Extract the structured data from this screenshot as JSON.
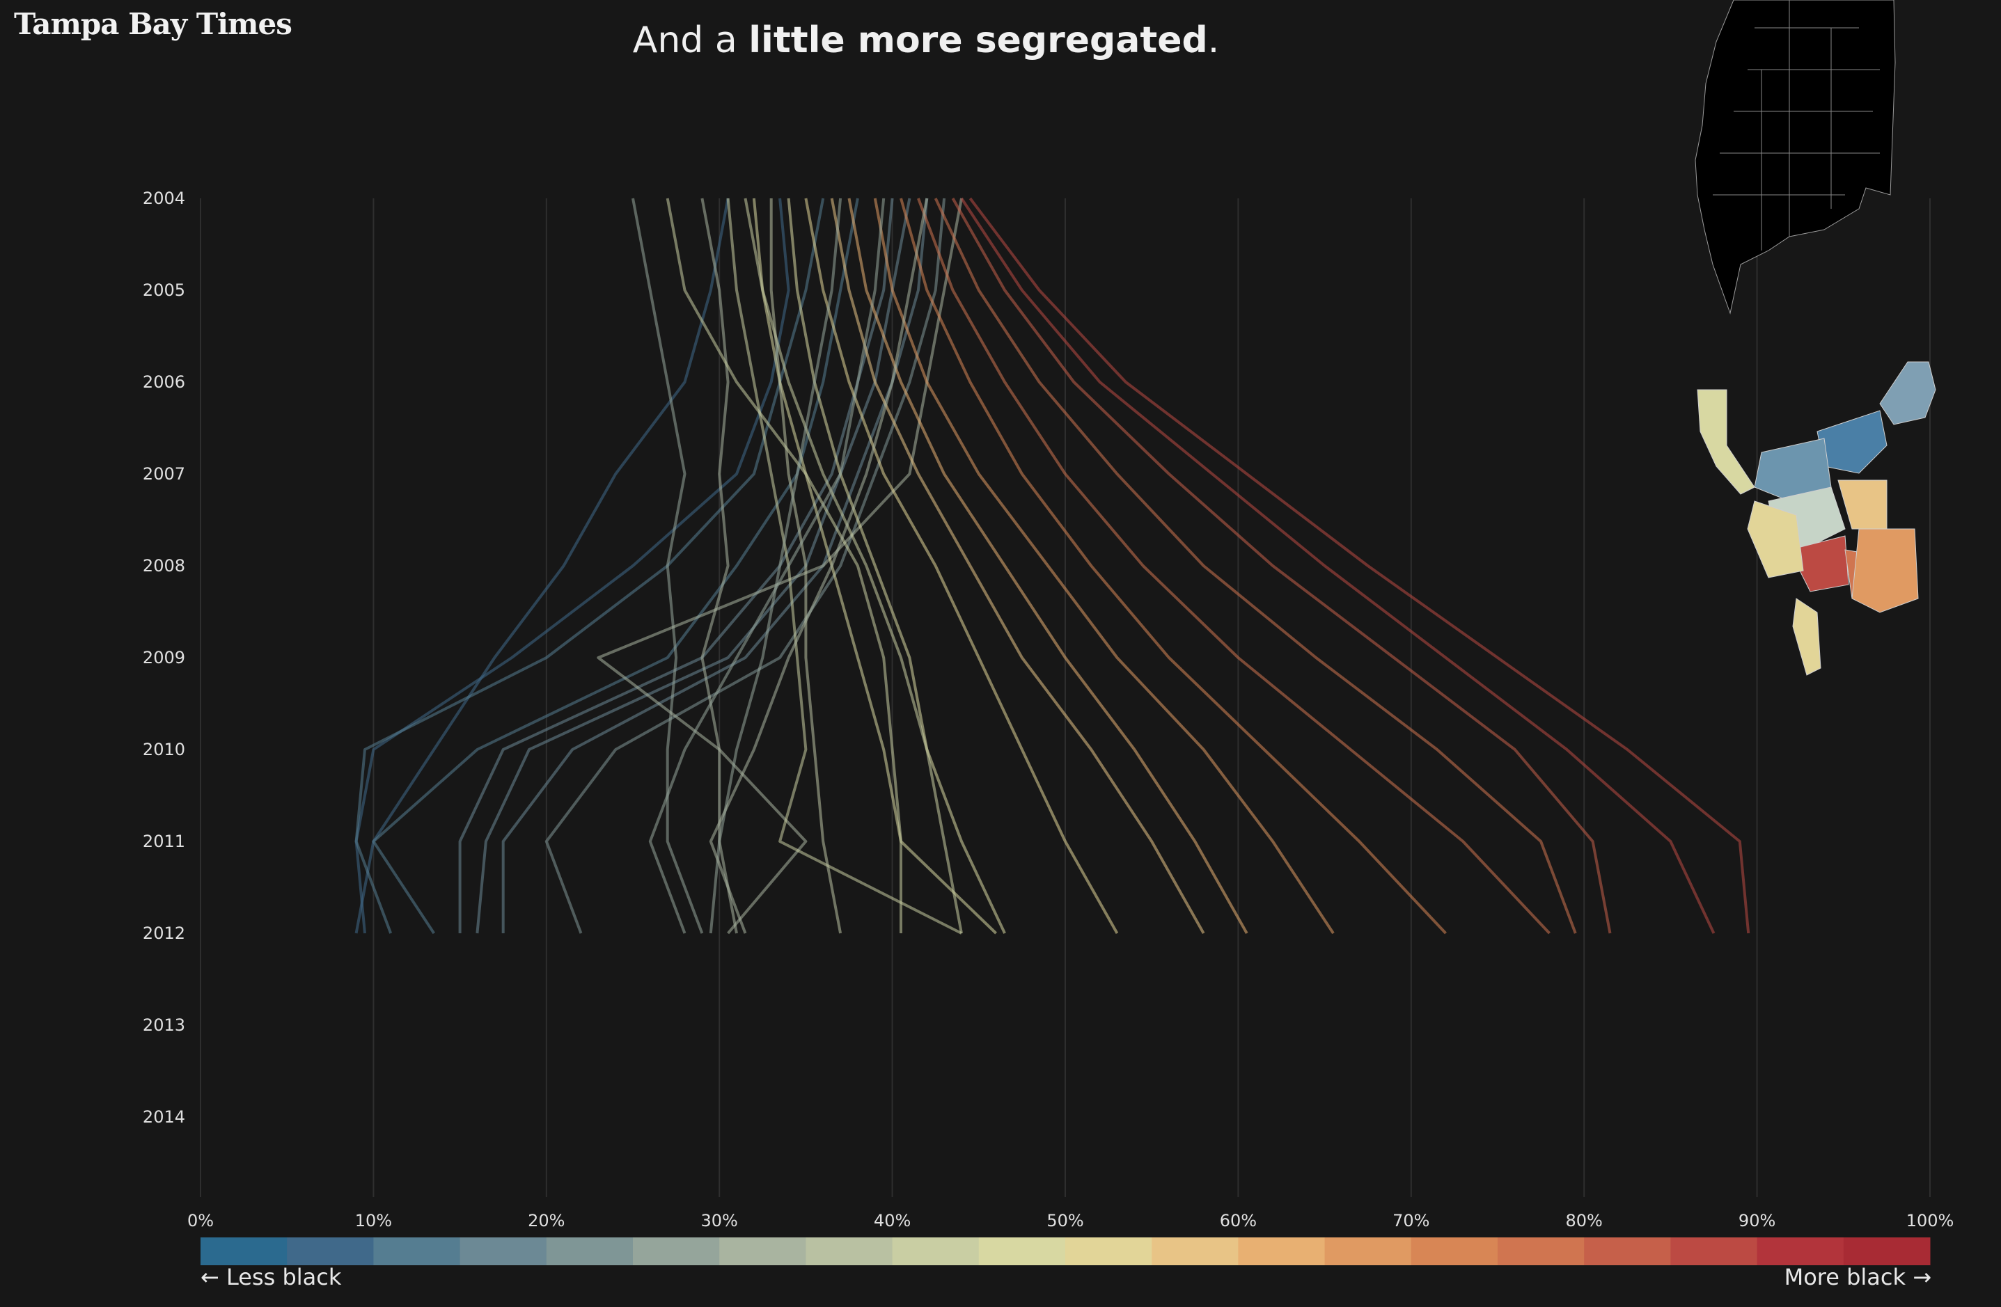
{
  "brand": {
    "logo_text": "Tampa Bay Times"
  },
  "headline": {
    "prefix": "And a ",
    "bold": "little more segregated",
    "suffix": "."
  },
  "legend": {
    "left_label": "← Less black",
    "right_label": "More black →"
  },
  "colors": {
    "background": "#171717",
    "gridline": "#2e2e2e",
    "scale": [
      "#2b6a8f",
      "#40698a",
      "#557d91",
      "#6c8995",
      "#7f9696",
      "#95a59b",
      "#a9b4a0",
      "#b9c1a2",
      "#c9cea3",
      "#d8d8a2",
      "#e2d598",
      "#e8c486",
      "#e8b072",
      "#e09a62",
      "#d88655",
      "#d07550",
      "#c6604a",
      "#bc4a43",
      "#b2343b",
      "#a82b34"
    ]
  },
  "chart_data": {
    "type": "line",
    "title": "And a little more segregated.",
    "xlabel": "",
    "ylabel": "",
    "xlim": [
      0,
      100
    ],
    "x_ticks": [
      "0%",
      "10%",
      "20%",
      "30%",
      "40%",
      "50%",
      "60%",
      "70%",
      "80%",
      "90%",
      "100%"
    ],
    "years": [
      "2004",
      "2005",
      "2006",
      "2007",
      "2008",
      "2009",
      "2010",
      "2011",
      "2012",
      "2013",
      "2014"
    ],
    "grid": true,
    "series": [
      {
        "values": [
          30.5,
          29.5,
          28.0,
          24.0,
          21.0,
          17.0,
          13.5,
          10.0,
          9.0
        ]
      },
      {
        "values": [
          33.5,
          34.0,
          33.0,
          31.0,
          25.0,
          18.0,
          10.0,
          9.0,
          9.5
        ]
      },
      {
        "values": [
          36.0,
          35.0,
          33.5,
          32.0,
          27.0,
          20.0,
          9.5,
          9.0,
          11.0
        ]
      },
      {
        "values": [
          38.0,
          37.0,
          36.0,
          34.5,
          31.0,
          27.0,
          16.0,
          10.0,
          13.5
        ]
      },
      {
        "values": [
          40.0,
          39.5,
          38.0,
          36.5,
          33.5,
          29.0,
          17.5,
          15.0,
          15.0
        ]
      },
      {
        "values": [
          41.0,
          40.0,
          39.0,
          37.0,
          35.0,
          30.5,
          19.0,
          16.5,
          16.0
        ]
      },
      {
        "values": [
          42.0,
          41.5,
          40.0,
          38.0,
          36.0,
          31.5,
          21.5,
          17.5,
          17.5
        ]
      },
      {
        "values": [
          43.0,
          42.5,
          41.0,
          39.0,
          37.0,
          33.5,
          24.0,
          20.0,
          22.0
        ]
      },
      {
        "values": [
          25.0,
          26.0,
          27.0,
          28.0,
          27.0,
          27.5,
          27.0,
          27.0,
          29.0
        ]
      },
      {
        "values": [
          29.0,
          30.0,
          30.5,
          30.0,
          30.5,
          29.0,
          30.0,
          30.0,
          31.0
        ]
      },
      {
        "values": [
          44.0,
          43.0,
          42.0,
          41.0,
          36.0,
          23.0,
          30.0,
          35.0,
          30.5
        ]
      },
      {
        "values": [
          30.5,
          31.0,
          32.0,
          33.0,
          34.0,
          34.5,
          35.0,
          33.5,
          44.0
        ]
      },
      {
        "values": [
          32.0,
          32.5,
          33.5,
          35.0,
          36.5,
          38.0,
          39.5,
          40.5,
          46.0
        ]
      },
      {
        "values": [
          34.0,
          34.5,
          35.5,
          37.0,
          39.0,
          41.0,
          42.0,
          44.0,
          46.5
        ]
      },
      {
        "values": [
          35.0,
          36.0,
          37.5,
          39.5,
          42.5,
          45.0,
          47.5,
          50.0,
          53.0
        ]
      },
      {
        "values": [
          36.5,
          37.5,
          39.0,
          41.5,
          44.5,
          47.5,
          51.5,
          55.0,
          58.0
        ]
      },
      {
        "values": [
          37.5,
          38.5,
          40.5,
          43.0,
          46.5,
          50.0,
          54.0,
          57.5,
          60.5
        ]
      },
      {
        "values": [
          39.0,
          40.0,
          42.0,
          45.0,
          49.0,
          53.0,
          58.0,
          62.0,
          65.5
        ]
      },
      {
        "values": [
          40.5,
          42.0,
          44.5,
          47.5,
          51.5,
          56.0,
          61.5,
          67.0,
          72.0
        ]
      },
      {
        "values": [
          41.5,
          43.5,
          46.5,
          50.0,
          54.5,
          60.0,
          66.5,
          73.0,
          78.0
        ]
      },
      {
        "values": [
          42.5,
          45.0,
          48.5,
          53.0,
          58.0,
          64.5,
          71.5,
          77.5,
          79.5
        ]
      },
      {
        "values": [
          43.5,
          46.5,
          50.5,
          56.0,
          62.0,
          69.0,
          76.0,
          80.5,
          81.5
        ]
      },
      {
        "values": [
          44.0,
          47.5,
          52.0,
          58.5,
          65.0,
          72.0,
          79.0,
          85.0,
          87.5
        ]
      },
      {
        "values": [
          44.5,
          48.5,
          53.5,
          60.5,
          67.5,
          75.0,
          82.5,
          89.0,
          89.5
        ]
      },
      {
        "values": [
          27.0,
          28.0,
          31.0,
          35.0,
          38.0,
          39.5,
          40.0,
          40.5,
          40.5
        ]
      },
      {
        "values": [
          31.5,
          32.5,
          34.0,
          36.0,
          38.5,
          40.5,
          42.0,
          43.0,
          44.0
        ]
      },
      {
        "values": [
          33.0,
          33.0,
          33.5,
          34.0,
          35.0,
          35.0,
          35.5,
          36.0,
          37.0
        ]
      },
      {
        "values": [
          37.0,
          36.5,
          35.5,
          34.5,
          33.5,
          32.5,
          31.0,
          30.0,
          29.5
        ]
      },
      {
        "values": [
          39.5,
          39.0,
          38.0,
          37.0,
          34.0,
          31.0,
          28.0,
          26.0,
          28.0
        ]
      },
      {
        "values": [
          42.0,
          41.0,
          40.0,
          38.5,
          36.5,
          34.0,
          32.0,
          29.5,
          31.5
        ]
      }
    ]
  },
  "map": {
    "counties": [
      {
        "name": "pinellas",
        "color": "#d8d8a2"
      },
      {
        "name": "north-a",
        "color": "#7f9fb3"
      },
      {
        "name": "north-b",
        "color": "#4a7fa6"
      },
      {
        "name": "north-c",
        "color": "#6c95ae"
      },
      {
        "name": "central-a",
        "color": "#c6d4c7"
      },
      {
        "name": "central-b",
        "color": "#e8c486"
      },
      {
        "name": "south-a",
        "color": "#d07550"
      },
      {
        "name": "south-b",
        "color": "#bc4a43"
      },
      {
        "name": "south-c",
        "color": "#e09a62"
      },
      {
        "name": "tip",
        "color": "#e2d598"
      }
    ]
  }
}
